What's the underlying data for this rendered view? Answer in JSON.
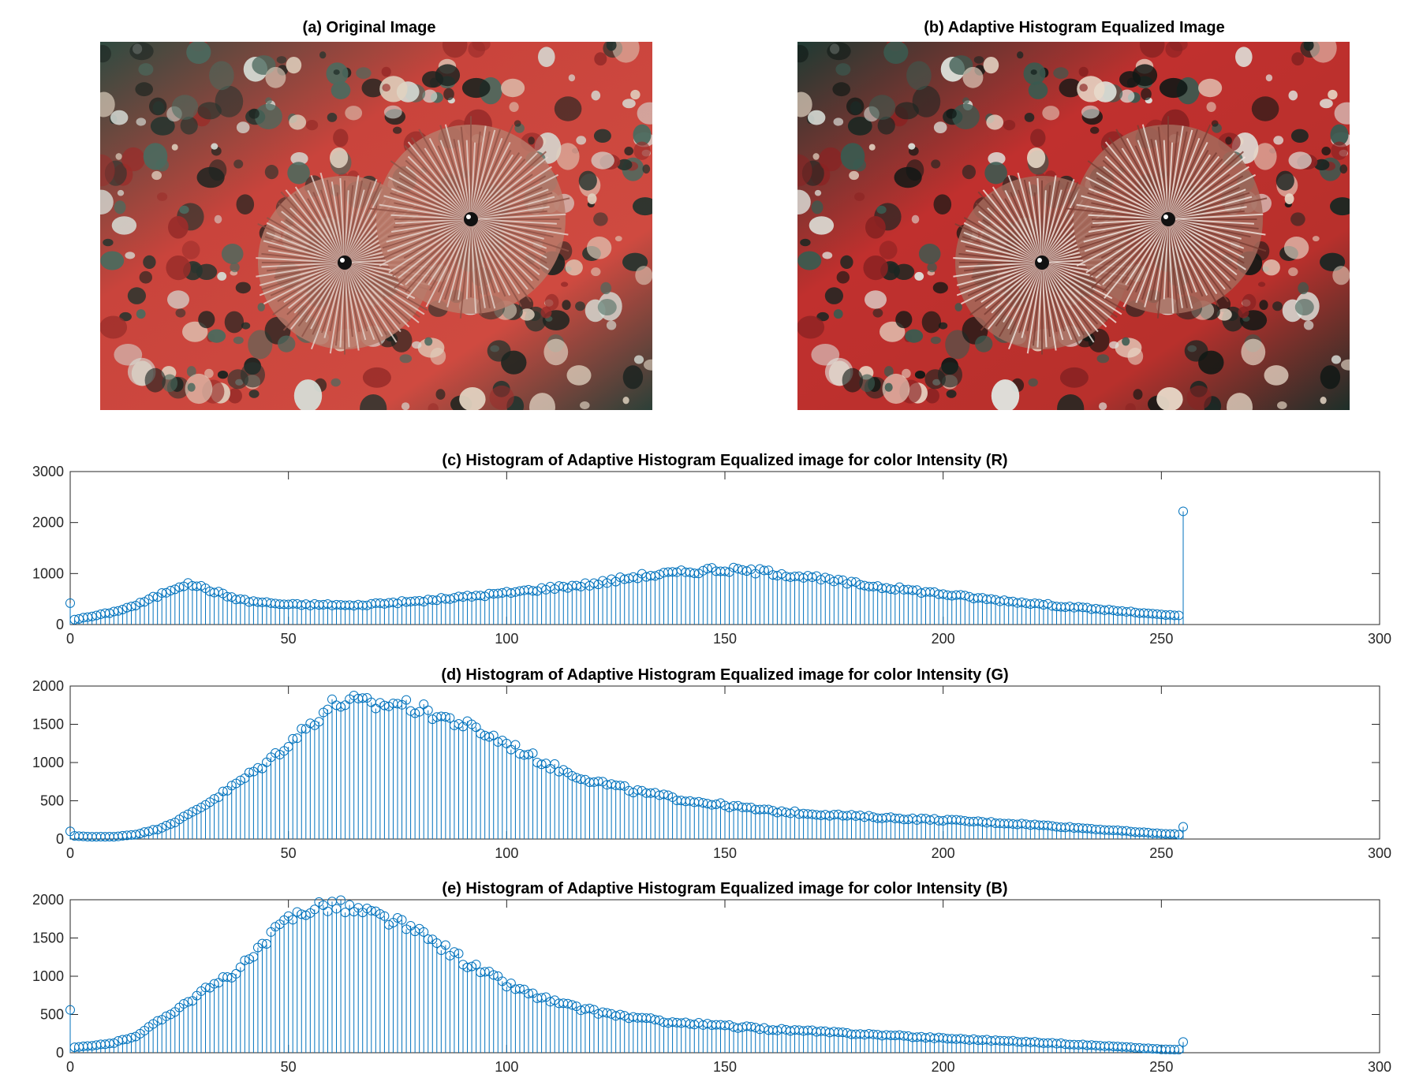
{
  "images": [
    {
      "title": "(a) Original Image",
      "subject": "feather-duster-worms-on-red-coral"
    },
    {
      "title": "(b) Adaptive Histogram Equalized Image",
      "subject": "feather-duster-worms-on-red-coral-equalized"
    }
  ],
  "colors": {
    "stem": "#0072BD",
    "axis": "#262626"
  },
  "chart_data": [
    {
      "type": "stem",
      "title": "(c) Histogram of Adaptive Histogram Equalized image for color Intensity (R)",
      "xlabel": "",
      "ylabel": "",
      "xlim": [
        0,
        300
      ],
      "ylim": [
        0,
        3000
      ],
      "xticks": [
        0,
        50,
        100,
        150,
        200,
        250,
        300
      ],
      "yticks": [
        0,
        1000,
        2000,
        3000
      ],
      "grid": false,
      "anchors": [
        [
          0,
          420
        ],
        [
          1,
          100
        ],
        [
          5,
          160
        ],
        [
          10,
          250
        ],
        [
          15,
          380
        ],
        [
          20,
          560
        ],
        [
          25,
          760
        ],
        [
          28,
          790
        ],
        [
          32,
          680
        ],
        [
          36,
          560
        ],
        [
          40,
          470
        ],
        [
          45,
          430
        ],
        [
          50,
          390
        ],
        [
          60,
          390
        ],
        [
          65,
          370
        ],
        [
          70,
          410
        ],
        [
          80,
          460
        ],
        [
          90,
          540
        ],
        [
          100,
          620
        ],
        [
          110,
          720
        ],
        [
          120,
          800
        ],
        [
          130,
          950
        ],
        [
          140,
          1020
        ],
        [
          147,
          1080
        ],
        [
          155,
          1060
        ],
        [
          160,
          1030
        ],
        [
          170,
          920
        ],
        [
          180,
          800
        ],
        [
          190,
          700
        ],
        [
          200,
          600
        ],
        [
          210,
          500
        ],
        [
          220,
          420
        ],
        [
          230,
          340
        ],
        [
          240,
          270
        ],
        [
          250,
          190
        ],
        [
          254,
          180
        ],
        [
          255,
          2220
        ]
      ]
    },
    {
      "type": "stem",
      "title": "(d) Histogram of Adaptive Histogram Equalized image for color Intensity (G)",
      "xlabel": "",
      "ylabel": "",
      "xlim": [
        0,
        300
      ],
      "ylim": [
        0,
        2000
      ],
      "xticks": [
        0,
        50,
        100,
        150,
        200,
        250,
        300
      ],
      "yticks": [
        0,
        500,
        1000,
        1500,
        2000
      ],
      "grid": false,
      "anchors": [
        [
          0,
          100
        ],
        [
          1,
          40
        ],
        [
          5,
          30
        ],
        [
          10,
          30
        ],
        [
          15,
          60
        ],
        [
          20,
          130
        ],
        [
          25,
          250
        ],
        [
          30,
          420
        ],
        [
          35,
          600
        ],
        [
          40,
          800
        ],
        [
          45,
          1000
        ],
        [
          50,
          1250
        ],
        [
          55,
          1500
        ],
        [
          60,
          1760
        ],
        [
          65,
          1800
        ],
        [
          70,
          1750
        ],
        [
          75,
          1780
        ],
        [
          80,
          1700
        ],
        [
          85,
          1600
        ],
        [
          90,
          1500
        ],
        [
          95,
          1380
        ],
        [
          100,
          1250
        ],
        [
          105,
          1100
        ],
        [
          110,
          960
        ],
        [
          115,
          850
        ],
        [
          120,
          760
        ],
        [
          130,
          620
        ],
        [
          140,
          520
        ],
        [
          150,
          440
        ],
        [
          160,
          370
        ],
        [
          170,
          330
        ],
        [
          180,
          300
        ],
        [
          190,
          270
        ],
        [
          200,
          250
        ],
        [
          210,
          220
        ],
        [
          220,
          190
        ],
        [
          230,
          150
        ],
        [
          240,
          110
        ],
        [
          250,
          70
        ],
        [
          254,
          60
        ],
        [
          255,
          160
        ]
      ]
    },
    {
      "type": "stem",
      "title": "(e) Histogram of Adaptive Histogram Equalized image for color Intensity (B)",
      "xlabel": "",
      "ylabel": "",
      "xlim": [
        0,
        300
      ],
      "ylim": [
        0,
        2000
      ],
      "xticks": [
        0,
        50,
        100,
        150,
        200,
        250,
        300
      ],
      "yticks": [
        0,
        500,
        1000,
        1500,
        2000
      ],
      "grid": false,
      "anchors": [
        [
          0,
          560
        ],
        [
          1,
          70
        ],
        [
          5,
          90
        ],
        [
          10,
          130
        ],
        [
          15,
          220
        ],
        [
          20,
          400
        ],
        [
          25,
          600
        ],
        [
          30,
          780
        ],
        [
          35,
          950
        ],
        [
          40,
          1150
        ],
        [
          45,
          1450
        ],
        [
          50,
          1750
        ],
        [
          55,
          1900
        ],
        [
          60,
          1950
        ],
        [
          65,
          1870
        ],
        [
          70,
          1800
        ],
        [
          75,
          1700
        ],
        [
          80,
          1550
        ],
        [
          85,
          1400
        ],
        [
          90,
          1200
        ],
        [
          95,
          1050
        ],
        [
          100,
          900
        ],
        [
          105,
          780
        ],
        [
          110,
          680
        ],
        [
          115,
          600
        ],
        [
          120,
          540
        ],
        [
          130,
          450
        ],
        [
          140,
          390
        ],
        [
          150,
          350
        ],
        [
          160,
          310
        ],
        [
          170,
          280
        ],
        [
          180,
          250
        ],
        [
          190,
          220
        ],
        [
          200,
          190
        ],
        [
          210,
          165
        ],
        [
          220,
          140
        ],
        [
          230,
          110
        ],
        [
          240,
          80
        ],
        [
          250,
          45
        ],
        [
          254,
          40
        ],
        [
          255,
          140
        ]
      ]
    }
  ]
}
